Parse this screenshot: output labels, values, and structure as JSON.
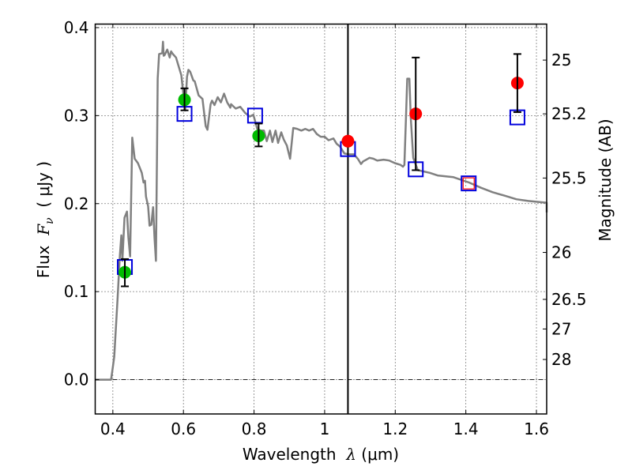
{
  "chart_data": {
    "type": "line",
    "title": "",
    "xlabel": "Wavelength  λ (μm)",
    "ylabel": "Flux  Fν  ( μJy )",
    "ylabel_parts": {
      "prefix": "Flux  ",
      "symbol": "F",
      "subscript": "ν",
      "suffix": "  ( μJy )"
    },
    "xlabel_parts": {
      "prefix": "Wavelength  ",
      "symbol": "λ",
      "suffix": " (μm)"
    },
    "y2label": "Magnitude (AB)",
    "xlim": [
      0.35,
      1.629
    ],
    "ylim": [
      -0.039,
      0.404
    ],
    "grid": true,
    "x_ticks": [
      {
        "value": 0.4,
        "label": "0.4"
      },
      {
        "value": 0.6,
        "label": "0.6"
      },
      {
        "value": 0.8,
        "label": "0.8"
      },
      {
        "value": 1.0,
        "label": "1"
      },
      {
        "value": 1.2,
        "label": "1.2"
      },
      {
        "value": 1.4,
        "label": "1.4"
      },
      {
        "value": 1.6,
        "label": "1.6"
      }
    ],
    "y_ticks": [
      {
        "value": 0.0,
        "label": "0.0"
      },
      {
        "value": 0.1,
        "label": "0.1"
      },
      {
        "value": 0.2,
        "label": "0.2"
      },
      {
        "value": 0.3,
        "label": "0.3"
      },
      {
        "value": 0.4,
        "label": "0.4"
      }
    ],
    "y2_ticks": [
      {
        "mag": 25,
        "label": "25"
      },
      {
        "mag": 25.2,
        "label": "25.2"
      },
      {
        "mag": 25.5,
        "label": "25.5"
      },
      {
        "mag": 26,
        "label": "26"
      },
      {
        "mag": 26.5,
        "label": "26.5"
      },
      {
        "mag": 27,
        "label": "27"
      },
      {
        "mag": 28,
        "label": "28"
      }
    ],
    "ab_zeropoint_ujy": 23.9,
    "zero_line": {
      "value": 0.0,
      "style": "dash-dot"
    },
    "vertical_line": {
      "x": 1.066,
      "color": "#000000"
    },
    "series": [
      {
        "name": "model-spectrum",
        "kind": "line",
        "color": "#808080",
        "x": [
          0.35,
          0.395,
          0.4,
          0.404,
          0.413,
          0.42,
          0.424,
          0.427,
          0.433,
          0.44,
          0.444,
          0.449,
          0.455,
          0.462,
          0.471,
          0.482,
          0.487,
          0.491,
          0.494,
          0.5,
          0.504,
          0.509,
          0.514,
          0.518,
          0.522,
          0.525,
          0.527,
          0.531,
          0.54,
          0.542,
          0.544,
          0.547,
          0.554,
          0.561,
          0.565,
          0.57,
          0.579,
          0.588,
          0.594,
          0.605,
          0.61,
          0.614,
          0.619,
          0.628,
          0.632,
          0.643,
          0.654,
          0.663,
          0.668,
          0.677,
          0.681,
          0.688,
          0.697,
          0.706,
          0.715,
          0.724,
          0.733,
          0.735,
          0.748,
          0.761,
          0.775,
          0.788,
          0.798,
          0.809,
          0.819,
          0.828,
          0.836,
          0.845,
          0.852,
          0.861,
          0.868,
          0.877,
          0.884,
          0.893,
          0.902,
          0.911,
          0.922,
          0.934,
          0.945,
          0.956,
          0.967,
          0.978,
          0.989,
          1.0,
          1.011,
          1.025,
          1.034,
          1.043,
          1.056,
          1.07,
          1.083,
          1.094,
          1.103,
          1.109,
          1.118,
          1.127,
          1.138,
          1.149,
          1.167,
          1.183,
          1.199,
          1.215,
          1.222,
          1.226,
          1.231,
          1.234,
          1.24,
          1.244,
          1.251,
          1.264,
          1.298,
          1.32,
          1.365,
          1.409,
          1.443,
          1.476,
          1.51,
          1.543,
          1.577,
          1.633,
          1.639,
          1.648
        ],
        "y": [
          0.0,
          0.0,
          0.014,
          0.026,
          0.09,
          0.142,
          0.164,
          0.135,
          0.184,
          0.191,
          0.162,
          0.14,
          0.275,
          0.251,
          0.246,
          0.235,
          0.224,
          0.226,
          0.208,
          0.197,
          0.175,
          0.176,
          0.196,
          0.161,
          0.135,
          0.253,
          0.342,
          0.37,
          0.371,
          0.384,
          0.368,
          0.369,
          0.375,
          0.366,
          0.373,
          0.37,
          0.366,
          0.354,
          0.346,
          0.306,
          0.344,
          0.352,
          0.35,
          0.34,
          0.339,
          0.323,
          0.319,
          0.288,
          0.284,
          0.313,
          0.317,
          0.312,
          0.321,
          0.315,
          0.325,
          0.315,
          0.309,
          0.313,
          0.308,
          0.31,
          0.303,
          0.299,
          0.301,
          0.285,
          0.283,
          0.283,
          0.271,
          0.283,
          0.27,
          0.283,
          0.269,
          0.281,
          0.273,
          0.266,
          0.251,
          0.286,
          0.285,
          0.283,
          0.285,
          0.283,
          0.285,
          0.279,
          0.276,
          0.276,
          0.272,
          0.274,
          0.268,
          0.265,
          0.257,
          0.256,
          0.256,
          0.251,
          0.245,
          0.248,
          0.25,
          0.252,
          0.251,
          0.249,
          0.25,
          0.249,
          0.246,
          0.244,
          0.242,
          0.244,
          0.306,
          0.342,
          0.342,
          0.297,
          0.252,
          0.238,
          0.235,
          0.232,
          0.23,
          0.224,
          0.218,
          0.213,
          0.209,
          0.205,
          0.203,
          0.201,
          0.199,
          0.19
        ]
      },
      {
        "name": "observed-optical",
        "kind": "scatter",
        "marker": "circle",
        "color": "#00bb00",
        "points": [
          {
            "x": 0.434,
            "y": 0.122,
            "yerr_low": 0.106,
            "yerr_high": 0.137
          },
          {
            "x": 0.603,
            "y": 0.318,
            "yerr_low": 0.306,
            "yerr_high": 0.331
          },
          {
            "x": 0.813,
            "y": 0.277,
            "yerr_low": 0.265,
            "yerr_high": 0.291
          }
        ]
      },
      {
        "name": "observed-infrared",
        "kind": "scatter",
        "marker": "circle",
        "color": "#ff0000",
        "points": [
          {
            "x": 1.066,
            "y": 0.271,
            "yerr_low": null,
            "yerr_high": null
          },
          {
            "x": 1.258,
            "y": 0.302,
            "yerr_low": 0.238,
            "yerr_high": 0.366
          },
          {
            "x": 1.546,
            "y": 0.337,
            "yerr_low": 0.304,
            "yerr_high": 0.37
          }
        ]
      },
      {
        "name": "model-photometry",
        "kind": "scatter",
        "marker": "open-square",
        "color": "#0000dd",
        "points": [
          {
            "x": 0.434,
            "y": 0.128
          },
          {
            "x": 0.603,
            "y": 0.302
          },
          {
            "x": 0.803,
            "y": 0.3
          },
          {
            "x": 1.066,
            "y": 0.262
          },
          {
            "x": 1.258,
            "y": 0.239
          },
          {
            "x": 1.408,
            "y": 0.223
          },
          {
            "x": 1.546,
            "y": 0.298
          }
        ]
      },
      {
        "name": "highlight",
        "kind": "scatter",
        "marker": "open-square-small",
        "color": "#ff0000",
        "points": [
          {
            "x": 1.408,
            "y": 0.223
          }
        ]
      }
    ]
  }
}
